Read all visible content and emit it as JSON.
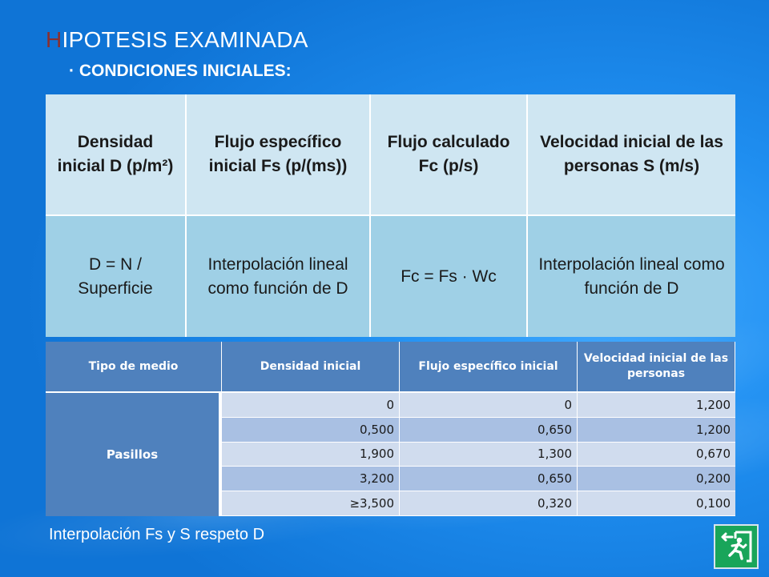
{
  "title": {
    "first_letter": "H",
    "rest": "IPOTESIS EXAMINADA"
  },
  "subtitle": "· CONDICIONES INICIALES:",
  "top_table": {
    "headers": [
      "Densidad inicial D (p/m²)",
      "Flujo específico inicial Fs (p/(ms))",
      "Flujo calculado Fc (p/s)",
      "Velocidad inicial de las personas S (m/s)"
    ],
    "values": [
      "D = N / Superficie",
      "Interpolación lineal como función de D",
      "Fc = Fs · Wc",
      "Interpolación lineal como función de D"
    ]
  },
  "bottom_table": {
    "headers": [
      "Tipo de medio",
      "Densidad inicial",
      "Flujo específico inicial",
      "Velocidad inicial de las personas"
    ],
    "stub": "Pasillos",
    "rows": [
      [
        "0",
        "0",
        "1,200"
      ],
      [
        "0,500",
        "0,650",
        "1,200"
      ],
      [
        "1,900",
        "1,300",
        "0,670"
      ],
      [
        "3,200",
        "0,650",
        "0,200"
      ],
      [
        "≥3,500",
        "0,320",
        "0,100"
      ]
    ]
  },
  "footer": "Interpolación Fs y S respeto D",
  "icons": {
    "exit": "emergency-exit-icon"
  },
  "colors": {
    "background": "#1f8ef0",
    "title_accent": "#8a2f2f",
    "top_header_bg": "#cfe6f2",
    "top_value_bg": "#9fd0e6",
    "bottom_header_bg": "#4f81bd",
    "bottom_row_light": "#d0dcee",
    "bottom_row_dark": "#a9c0e3",
    "exit_green": "#19a55a"
  }
}
